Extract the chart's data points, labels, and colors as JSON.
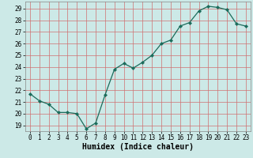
{
  "x": [
    0,
    1,
    2,
    3,
    4,
    5,
    6,
    7,
    8,
    9,
    10,
    11,
    12,
    13,
    14,
    15,
    16,
    17,
    18,
    19,
    20,
    21,
    22,
    23
  ],
  "y": [
    21.7,
    21.1,
    20.8,
    20.1,
    20.1,
    20.0,
    18.7,
    19.2,
    21.6,
    23.8,
    24.3,
    23.9,
    24.4,
    25.0,
    26.0,
    26.3,
    27.5,
    27.8,
    28.8,
    29.2,
    29.1,
    28.9,
    27.7,
    27.5
  ],
  "line_color": "#1a6b5a",
  "marker": "D",
  "marker_size": 2.2,
  "bg_color": "#cce9e7",
  "grid_color": "#d07070",
  "axis_label_color": "#000000",
  "tick_color": "#000000",
  "xlabel": "Humidex (Indice chaleur)",
  "ylim": [
    18.5,
    29.6
  ],
  "xlim": [
    -0.5,
    23.5
  ],
  "yticks": [
    19,
    20,
    21,
    22,
    23,
    24,
    25,
    26,
    27,
    28,
    29
  ],
  "xticks": [
    0,
    1,
    2,
    3,
    4,
    5,
    6,
    7,
    8,
    9,
    10,
    11,
    12,
    13,
    14,
    15,
    16,
    17,
    18,
    19,
    20,
    21,
    22,
    23
  ],
  "tick_fontsize": 5.5,
  "xlabel_fontsize": 7.0
}
